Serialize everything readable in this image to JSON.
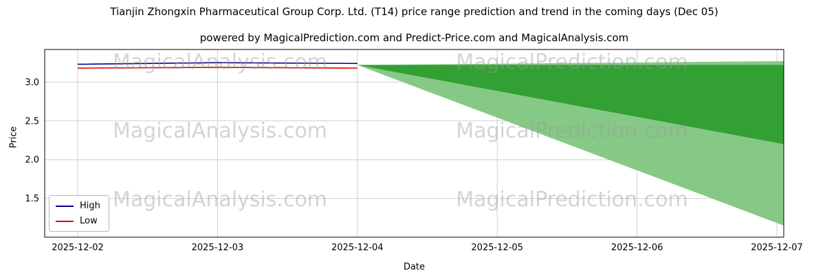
{
  "chart_data": {
    "type": "line",
    "title": "Tianjin Zhongxin Pharmaceutical Group Corp. Ltd. (T14) price range prediction and trend in the coming days (Dec 05)",
    "subtitle": "powered by MagicalPrediction.com and Predict-Price.com and MagicalAnalysis.com",
    "xlabel": "Date",
    "ylabel": "Price",
    "categories": [
      "2025-12-02",
      "2025-12-03",
      "2025-12-04",
      "2025-12-05",
      "2025-12-06",
      "2025-12-07"
    ],
    "yticks": [
      1.5,
      2.0,
      2.5,
      3.0
    ],
    "ylim": [
      1.0,
      3.42
    ],
    "grid": true,
    "series": [
      {
        "name": "High",
        "color": "#00008b",
        "x_indices": [
          0,
          1,
          2
        ],
        "values": [
          3.23,
          3.25,
          3.24
        ]
      },
      {
        "name": "Low",
        "color": "#dd0000",
        "x_indices": [
          0,
          1,
          2
        ],
        "values": [
          3.18,
          3.19,
          3.18
        ]
      }
    ],
    "forecast_bands": [
      {
        "name": "outer-range",
        "color": "#86c986",
        "start_index": 2,
        "top_start": 3.22,
        "top_end": 3.27,
        "bottom_end": 1.15
      },
      {
        "name": "inner-range",
        "color": "#33a033",
        "start_index": 2,
        "top_start": 3.22,
        "top_end": 3.22,
        "bottom_end": 2.2
      }
    ],
    "legend": {
      "position": "lower left",
      "entries": [
        {
          "label": "High",
          "color": "#00008b"
        },
        {
          "label": "Low",
          "color": "#dd0000"
        }
      ]
    },
    "watermarks": {
      "left_text": "MagicalAnalysis.com",
      "right_text": "MagicalPrediction.com",
      "rows": 3
    }
  }
}
